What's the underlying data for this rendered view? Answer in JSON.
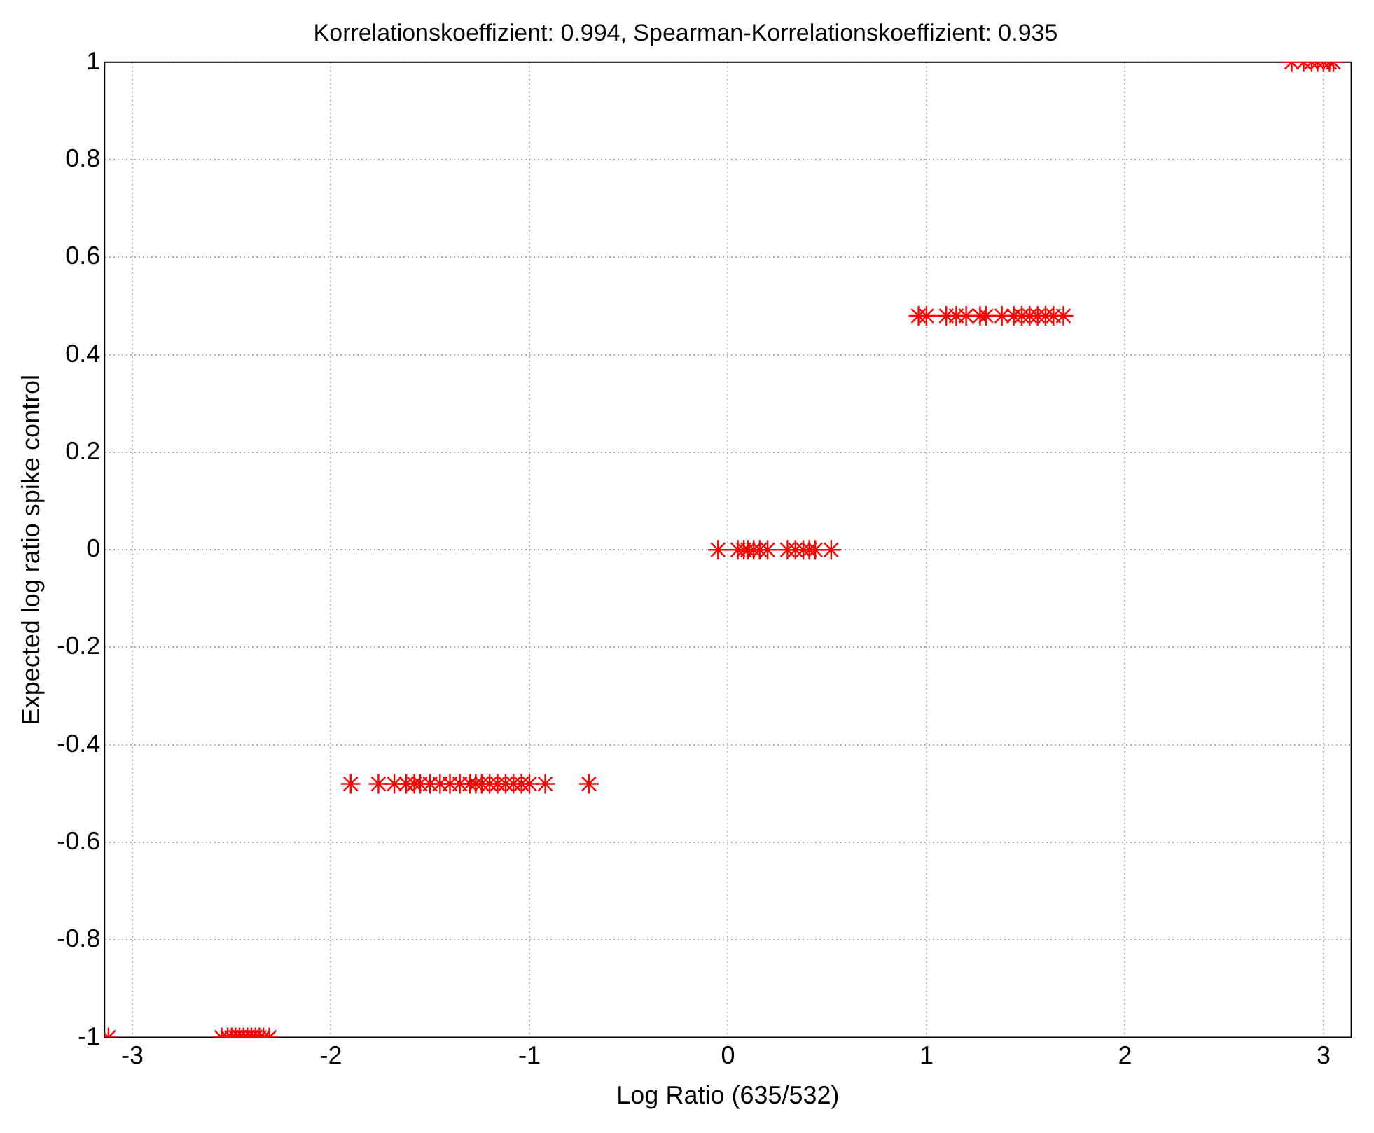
{
  "chart_data": {
    "type": "scatter",
    "title": "Korrelationskoeffizient: 0.994, Spearman-Korrelationskoeffizient: 0.935",
    "xlabel": "Log Ratio (635/532)",
    "ylabel": "Expected log ratio spike control",
    "marker": "cross",
    "grid": true,
    "xlim": [
      -3.14,
      3.14
    ],
    "xticks": [
      -3,
      -2,
      -1,
      0,
      1,
      2,
      3
    ],
    "ylim": [
      -1,
      1
    ],
    "yticks": [
      -1,
      -0.8,
      -0.6,
      -0.4,
      -0.2,
      0,
      0.2,
      0.4,
      0.6,
      0.8,
      1
    ],
    "series": [
      {
        "color": "#ff0000",
        "x": [
          -3.12,
          -2.55,
          -2.52,
          -2.5,
          -2.48,
          -2.46,
          -2.44,
          -2.42,
          -2.4,
          -2.38,
          -2.36,
          -2.34,
          -2.31,
          -1.9,
          -1.76,
          -1.68,
          -1.62,
          -1.58,
          -1.55,
          -1.5,
          -1.45,
          -1.4,
          -1.35,
          -1.3,
          -1.27,
          -1.24,
          -1.2,
          -1.16,
          -1.12,
          -1.08,
          -1.04,
          -1.0,
          -0.92,
          -0.7,
          -0.05,
          0.05,
          0.08,
          0.1,
          0.13,
          0.16,
          0.2,
          0.3,
          0.34,
          0.38,
          0.41,
          0.44,
          0.52,
          0.96,
          1.0,
          1.1,
          1.15,
          1.2,
          1.27,
          1.3,
          1.38,
          1.44,
          1.48,
          1.52,
          1.56,
          1.6,
          1.64,
          1.69,
          2.84,
          2.9,
          2.94,
          2.97,
          3.0,
          3.03,
          3.05
        ],
        "values": [
          -1,
          -1,
          -1,
          -1,
          -1,
          -1,
          -1,
          -1,
          -1,
          -1,
          -1,
          -1,
          -1,
          -0.48,
          -0.48,
          -0.48,
          -0.48,
          -0.48,
          -0.48,
          -0.48,
          -0.48,
          -0.48,
          -0.48,
          -0.48,
          -0.48,
          -0.48,
          -0.48,
          -0.48,
          -0.48,
          -0.48,
          -0.48,
          -0.48,
          -0.48,
          -0.48,
          0,
          0,
          0,
          0,
          0,
          0,
          0,
          0,
          0,
          0,
          0,
          0,
          0,
          0.48,
          0.48,
          0.48,
          0.48,
          0.48,
          0.48,
          0.48,
          0.48,
          0.48,
          0.48,
          0.48,
          0.48,
          0.48,
          0.48,
          0.48,
          1,
          1,
          1,
          1,
          1,
          1,
          1
        ]
      }
    ]
  }
}
